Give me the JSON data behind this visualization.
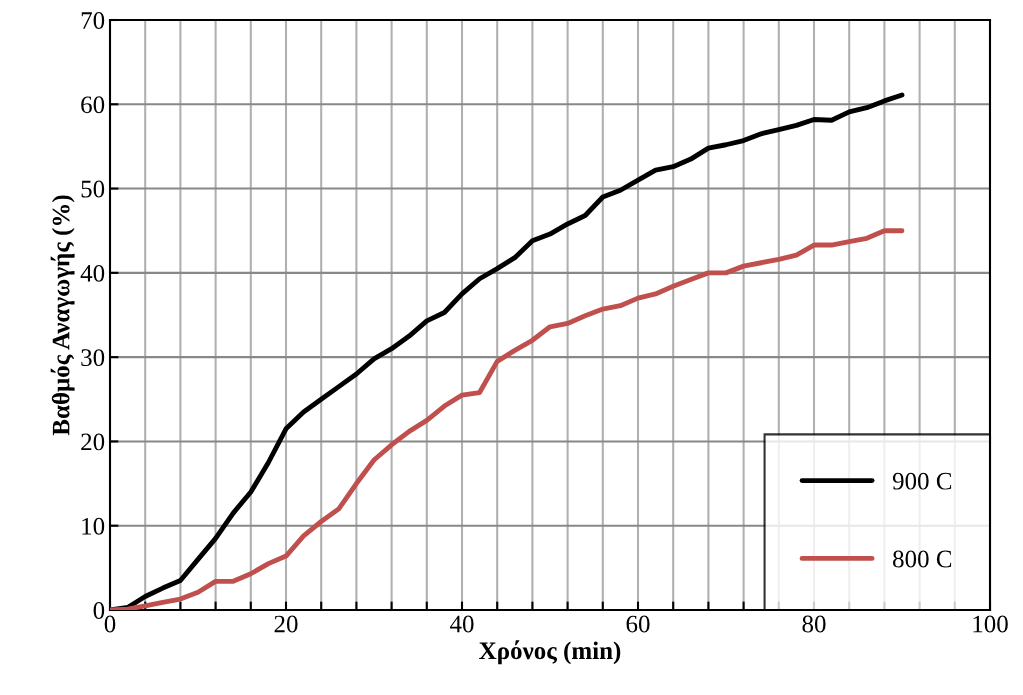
{
  "chart_data": {
    "type": "line",
    "xlabel": "Χρόνος (min)",
    "ylabel": "Βαθμός Αναγωγής (%)",
    "x": [
      0,
      2,
      4,
      6,
      8,
      10,
      12,
      14,
      16,
      18,
      20,
      22,
      24,
      26,
      28,
      30,
      32,
      34,
      36,
      38,
      40,
      42,
      44,
      46,
      48,
      50,
      52,
      54,
      56,
      58,
      60,
      62,
      64,
      66,
      68,
      70,
      72,
      74,
      76,
      78,
      80,
      82,
      84,
      86,
      88,
      90
    ],
    "series": [
      {
        "name": "900 C",
        "color": "#000000",
        "values": [
          0,
          0.3,
          1.6,
          2.6,
          3.5,
          6,
          8.5,
          11.5,
          14,
          17.5,
          21.5,
          23.5,
          25,
          26.5,
          28,
          29.8,
          31,
          32.5,
          34.3,
          35.3,
          37.5,
          39.3,
          40.5,
          41.8,
          43.8,
          44.6,
          45.8,
          46.8,
          49,
          49.8,
          51,
          52.2,
          52.6,
          53.5,
          54.8,
          55.2,
          55.7,
          56.5,
          57,
          57.5,
          58.2,
          58.1,
          59.1,
          59.6,
          60.4,
          61.1
        ]
      },
      {
        "name": "800 C",
        "color": "#c0504d",
        "values": [
          0,
          0.1,
          0.5,
          0.9,
          1.3,
          2.1,
          3.4,
          3.4,
          4.3,
          5.5,
          6.4,
          8.8,
          10.5,
          12,
          15,
          17.8,
          19.6,
          21.2,
          22.5,
          24.2,
          25.5,
          25.8,
          29.5,
          30.8,
          32,
          33.6,
          34,
          34.9,
          35.7,
          36.1,
          37,
          37.5,
          38.4,
          39.2,
          40,
          40,
          40.8,
          41.2,
          41.6,
          42.1,
          43.3,
          43.3,
          43.7,
          44.1,
          45,
          45
        ]
      }
    ],
    "xlim": [
      0,
      100
    ],
    "xticks": [
      0,
      {
        "value": 4,
        "label": null
      },
      {
        "value": 8,
        "label": null
      },
      {
        "value": 12,
        "label": null
      },
      {
        "value": 16,
        "label": null
      },
      20,
      {
        "value": 24,
        "label": null
      },
      {
        "value": 28,
        "label": null
      },
      {
        "value": 32,
        "label": null
      },
      {
        "value": 36,
        "label": null
      },
      40,
      {
        "value": 44,
        "label": null
      },
      {
        "value": 48,
        "label": null
      },
      {
        "value": 52,
        "label": null
      },
      {
        "value": 56,
        "label": null
      },
      60,
      {
        "value": 64,
        "label": null
      },
      {
        "value": 68,
        "label": null
      },
      {
        "value": 72,
        "label": null
      },
      {
        "value": 76,
        "label": null
      },
      80,
      {
        "value": 84,
        "label": null
      },
      {
        "value": 88,
        "label": null
      },
      {
        "value": 92,
        "label": null
      },
      {
        "value": 96,
        "label": null
      },
      100
    ],
    "ylim": [
      0,
      70
    ],
    "yticks": [
      0,
      10,
      20,
      30,
      40,
      50,
      60,
      70
    ],
    "grid": true,
    "legend": "bottom right",
    "line_style": "solid",
    "marker": "none"
  }
}
